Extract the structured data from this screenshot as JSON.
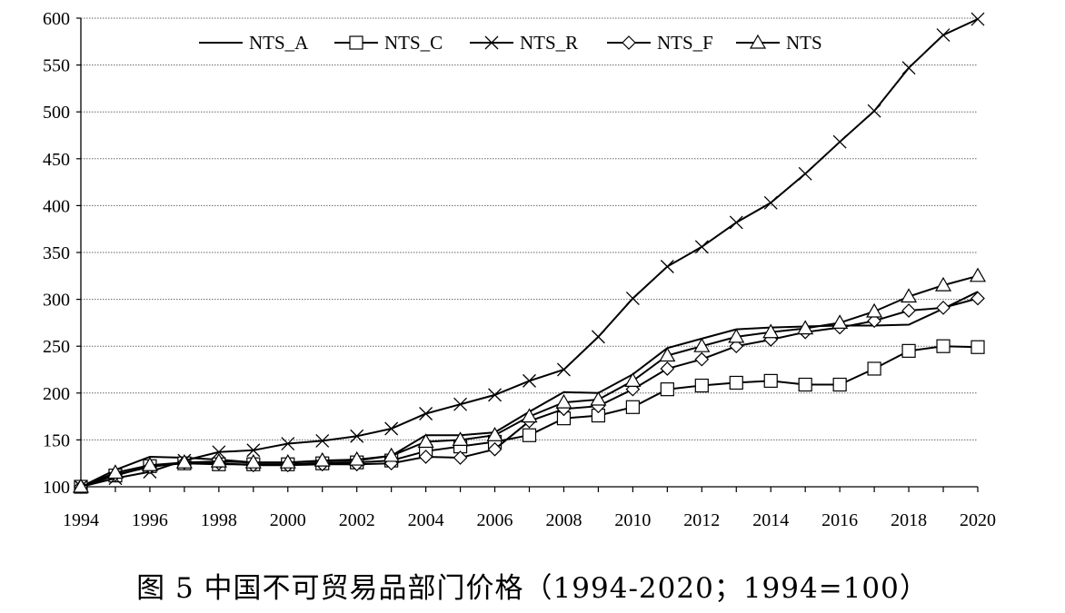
{
  "caption": "图 5  中国不可贸易品部门价格（1994-2020；1994=100）",
  "chart_data": {
    "type": "line",
    "title": "图 5  中国不可贸易品部门价格（1994-2020；1994=100）",
    "xlabel": "",
    "ylabel": "",
    "x": [
      1994,
      1995,
      1996,
      1997,
      1998,
      1999,
      2000,
      2001,
      2002,
      2003,
      2004,
      2005,
      2006,
      2007,
      2008,
      2009,
      2010,
      2011,
      2012,
      2013,
      2014,
      2015,
      2016,
      2017,
      2018,
      2019,
      2020
    ],
    "xticks": [
      "1994",
      "1996",
      "1998",
      "2000",
      "2002",
      "2004",
      "2006",
      "2008",
      "2010",
      "2012",
      "2014",
      "2016",
      "2018",
      "2020"
    ],
    "ylim": [
      100,
      600
    ],
    "yticks": [
      "100",
      "150",
      "200",
      "250",
      "300",
      "350",
      "400",
      "450",
      "500",
      "550",
      "600"
    ],
    "grid": "horizontal",
    "legend_position": "top",
    "series": [
      {
        "name": "NTS_A",
        "marker": "none",
        "values": [
          100,
          118,
          132,
          131,
          129,
          126,
          126,
          127,
          128,
          133,
          155,
          155,
          158,
          180,
          201,
          200,
          220,
          248,
          258,
          268,
          270,
          271,
          272,
          272,
          273,
          290,
          308
        ]
      },
      {
        "name": "NTS_C",
        "marker": "square",
        "values": [
          100,
          112,
          122,
          125,
          124,
          124,
          124,
          125,
          126,
          128,
          138,
          143,
          148,
          155,
          173,
          176,
          185,
          204,
          208,
          211,
          213,
          209,
          209,
          226,
          245,
          250,
          249
        ]
      },
      {
        "name": "NTS_R",
        "marker": "x",
        "values": [
          100,
          109,
          116,
          128,
          137,
          139,
          146,
          149,
          154,
          162,
          178,
          188,
          198,
          213,
          225,
          260,
          301,
          335,
          356,
          382,
          403,
          434,
          468,
          501,
          547,
          582,
          599
        ]
      },
      {
        "name": "NTS_F",
        "marker": "diamond",
        "values": [
          100,
          113,
          121,
          126,
          125,
          123,
          123,
          124,
          124,
          125,
          132,
          131,
          140,
          170,
          183,
          186,
          204,
          226,
          236,
          250,
          257,
          265,
          270,
          277,
          288,
          291,
          301
        ]
      },
      {
        "name": "NTS",
        "marker": "triangle",
        "values": [
          100,
          115,
          123,
          126,
          127,
          126,
          126,
          128,
          129,
          133,
          148,
          150,
          155,
          175,
          190,
          193,
          213,
          240,
          250,
          260,
          265,
          269,
          275,
          287,
          303,
          315,
          325
        ]
      }
    ]
  }
}
